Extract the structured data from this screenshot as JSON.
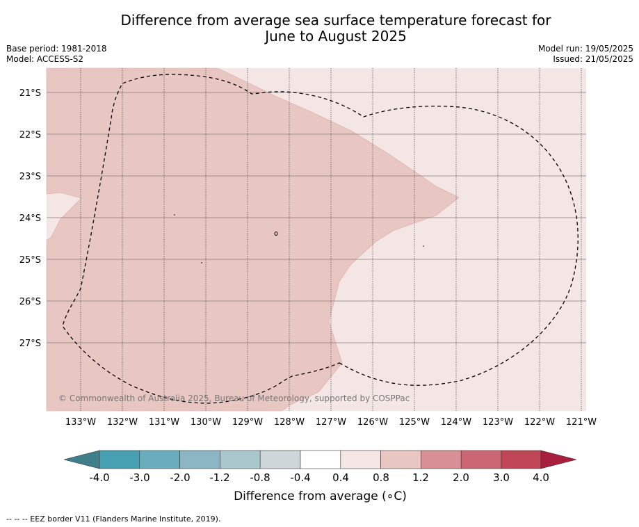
{
  "title": {
    "line1": "Difference from average sea surface temperature forecast for",
    "line2": "June to August 2025"
  },
  "meta": {
    "base_period": "Base period: 1981-2018",
    "model": "Model: ACCESS-S2",
    "model_run": "Model run: 19/05/2025",
    "issued": "Issued: 21/05/2025"
  },
  "map": {
    "latitude_labels": [
      "21°S",
      "22°S",
      "23°S",
      "24°S",
      "25°S",
      "26°S",
      "27°S"
    ],
    "longitude_labels": [
      "133°W",
      "132°W",
      "131°W",
      "130°W",
      "129°W",
      "128°W",
      "127°W",
      "126°W",
      "125°W",
      "124°W",
      "123°W",
      "122°W",
      "121°W"
    ],
    "copyright": "© Commonwealth of Australia 2025, Bureau of Meteorology, supported by COSPPac",
    "colors": {
      "band_0_8_to_1_2": "#e8c6c2",
      "band_0_4_to_0_8": "#f4e6e4",
      "eez_border": "#000000"
    }
  },
  "colorbar": {
    "ticks": [
      "-4.0",
      "-3.0",
      "-2.0",
      "-1.2",
      "-0.8",
      "-0.4",
      "0.4",
      "0.8",
      "1.2",
      "2.0",
      "3.0",
      "4.0"
    ],
    "colors": [
      "#3f7f8a",
      "#47a0b1",
      "#6aaebd",
      "#8ab7c3",
      "#a9c7cd",
      "#cdd7da",
      "#ffffff",
      "#f4e6e4",
      "#e8c6c2",
      "#d88f96",
      "#cc6674",
      "#c04657",
      "#a81f3d"
    ],
    "title": "Difference from average (∘C)"
  },
  "footer": "--  --  -- EEZ border V11 (Flanders Marine Institute, 2019)."
}
